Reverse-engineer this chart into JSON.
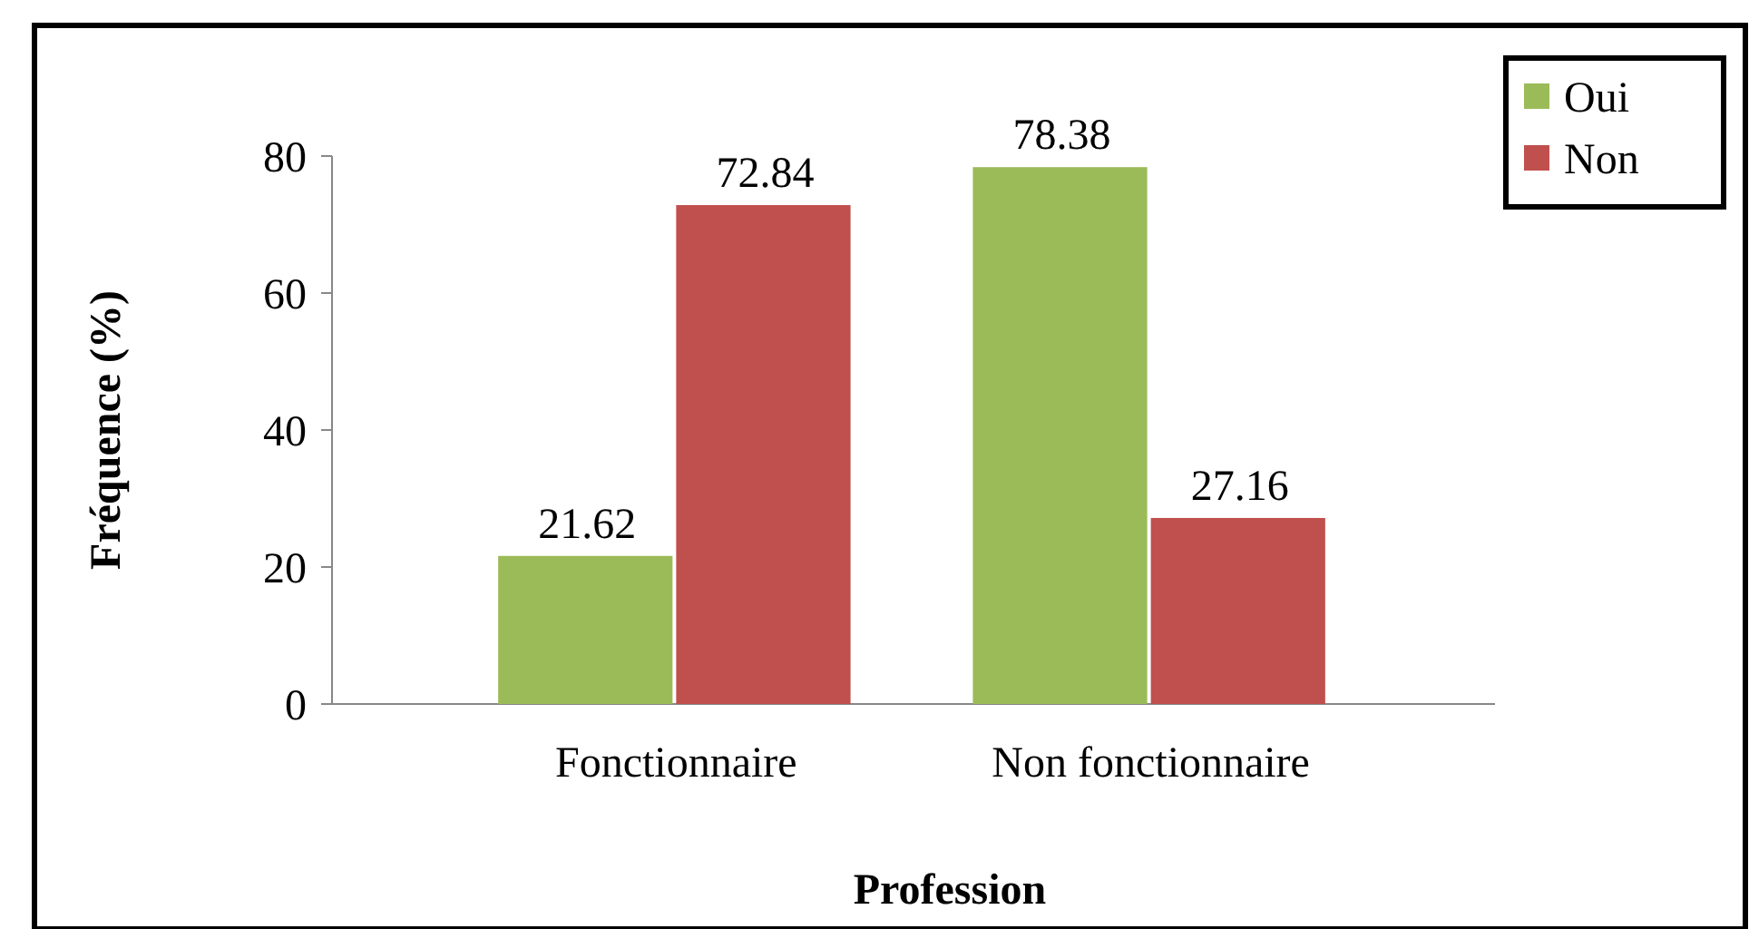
{
  "chart_data": {
    "type": "bar",
    "xlabel": "Profession",
    "ylabel": "Fréquence (%)",
    "categories": [
      "Fonctionnaire",
      "Non fonctionnaire"
    ],
    "series": [
      {
        "name": "Oui",
        "color": "#9bbb59",
        "values": [
          21.62,
          78.38
        ]
      },
      {
        "name": "Non",
        "color": "#c0504d",
        "values": [
          72.84,
          27.16
        ]
      }
    ],
    "ylim": [
      0,
      80
    ],
    "yticks": [
      0,
      20,
      40,
      60,
      80
    ],
    "grid": false,
    "legend": "top right",
    "data_labels": true
  }
}
